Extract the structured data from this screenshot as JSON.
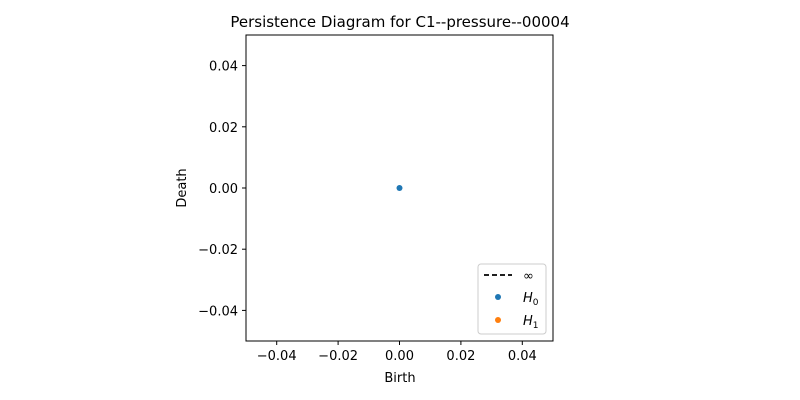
{
  "chart_data": {
    "type": "scatter",
    "title": "Persistence Diagram for C1--pressure--00004",
    "xlabel": "Birth",
    "ylabel": "Death",
    "xlim": [
      -0.05,
      0.05
    ],
    "ylim": [
      -0.05,
      0.05
    ],
    "xticks": [
      -0.04,
      -0.02,
      0.0,
      0.02,
      0.04
    ],
    "yticks": [
      -0.04,
      -0.02,
      0.0,
      0.02,
      0.04
    ],
    "xtick_labels": [
      "−0.04",
      "−0.02",
      "0.00",
      "0.02",
      "0.04"
    ],
    "ytick_labels": [
      "−0.04",
      "−0.02",
      "0.00",
      "0.02",
      "0.04"
    ],
    "grid": false,
    "legend_position": "lower-right",
    "legend": [
      {
        "label": "∞",
        "kind": "dashed-line",
        "color": "#000000"
      },
      {
        "label": "H",
        "subscript": "0",
        "kind": "marker",
        "color": "#1f77b4"
      },
      {
        "label": "H",
        "subscript": "1",
        "kind": "marker",
        "color": "#ff7f0e"
      }
    ],
    "series": [
      {
        "name": "H0",
        "color": "#1f77b4",
        "points": [
          {
            "x": 0.0,
            "y": 0.0
          }
        ]
      },
      {
        "name": "H1",
        "color": "#ff7f0e",
        "points": []
      }
    ]
  }
}
